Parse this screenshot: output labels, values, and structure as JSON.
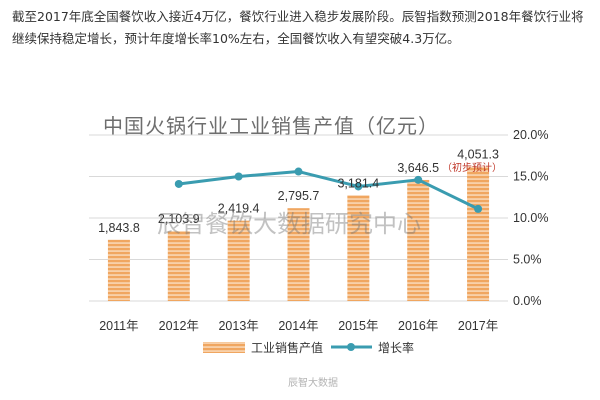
{
  "article": {
    "text": "截至2017年底全国餐饮收入接近4万亿，餐饮行业进入稳步发展阶段。辰智指数预测2018年餐饮行业将继续保持稳定增长，预计年度增长率10%左右，全国餐饮收入有望突破4.3万亿。"
  },
  "watermark": "辰智餐饮大数据研究中心",
  "weibo_mark": "辰智大数据",
  "colors": {
    "bar": "#f0a660",
    "bar_stripe": "#fbe3c8",
    "line": "#3a9cb0",
    "grid": "#d9d9d9"
  },
  "chart_data": {
    "type": "bar",
    "title": "中国火锅行业工业销售产值（亿元）",
    "categories": [
      "2011年",
      "2012年",
      "2013年",
      "2014年",
      "2015年",
      "2016年",
      "2017年"
    ],
    "series": [
      {
        "name": "工业销售产值",
        "type": "bar",
        "axis": "left",
        "values": [
          1843.8,
          2103.9,
          2419.4,
          2795.7,
          3181.4,
          3646.5,
          4051.3
        ],
        "labels": [
          "1,843.8",
          "2,103.9",
          "2,419.4",
          "2,795.7",
          "3,181.4",
          "3,646.5",
          "4,051.3"
        ]
      },
      {
        "name": "增长率",
        "type": "line",
        "axis": "right",
        "values": [
          null,
          14.1,
          15.0,
          15.6,
          13.8,
          14.6,
          11.1
        ]
      }
    ],
    "annotation": "（初步预计）",
    "y_left_range": [
      0,
      5000
    ],
    "y_right_range": [
      0,
      20
    ],
    "y_right_ticks": [
      "0.0%",
      "5.0%",
      "10.0%",
      "15.0%",
      "20.0%"
    ],
    "grid": true,
    "legend_position": "bottom"
  }
}
